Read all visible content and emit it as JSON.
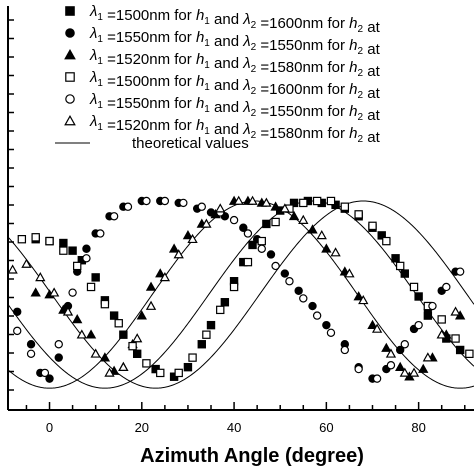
{
  "chart_data": {
    "type": "scatter",
    "xlabel": "Azimuth Angle (degree)",
    "xlim": [
      -9,
      92
    ],
    "ylim": [
      0,
      1
    ],
    "x_ticks": [
      0,
      20,
      40,
      60,
      80
    ],
    "grid": false,
    "legend_position": "top-right",
    "series": [
      {
        "legend_label": "λ1 =1500nm for h1 and λ2 =1600nm for h2 at",
        "marker": "filled-square",
        "points": [
          [
            -3,
            0.8
          ],
          [
            0,
            0.79
          ],
          [
            3,
            0.78
          ],
          [
            5,
            0.74
          ],
          [
            7,
            0.69
          ],
          [
            10,
            0.6
          ],
          [
            12,
            0.48
          ],
          [
            14,
            0.4
          ],
          [
            16,
            0.3
          ],
          [
            19,
            0.2
          ],
          [
            23,
            0.12
          ],
          [
            27,
            0.08
          ],
          [
            30,
            0.13
          ],
          [
            33,
            0.25
          ],
          [
            35,
            0.35
          ],
          [
            38,
            0.47
          ],
          [
            40,
            0.58
          ],
          [
            42,
            0.68
          ],
          [
            44,
            0.77
          ],
          [
            47,
            0.88
          ],
          [
            50,
            0.95
          ],
          [
            53,
            0.99
          ],
          [
            56,
            1.0
          ],
          [
            59,
            0.99
          ],
          [
            62,
            0.98
          ],
          [
            64,
            0.96
          ],
          [
            67,
            0.92
          ],
          [
            70,
            0.86
          ],
          [
            72,
            0.82
          ],
          [
            75,
            0.7
          ],
          [
            77,
            0.62
          ],
          [
            80,
            0.5
          ],
          [
            82,
            0.4
          ],
          [
            86,
            0.28
          ],
          [
            89,
            0.22
          ]
        ]
      },
      {
        "legend_label": "λ1 =1550nm for h1 and λ2 =1550nm for h2 at",
        "marker": "filled-circle",
        "points": [
          [
            -7,
            0.42
          ],
          [
            -4,
            0.25
          ],
          [
            -2,
            0.1
          ],
          [
            0,
            0.07
          ],
          [
            2,
            0.18
          ],
          [
            4,
            0.45
          ],
          [
            6,
            0.63
          ],
          [
            8,
            0.75
          ],
          [
            10,
            0.83
          ],
          [
            13,
            0.92
          ],
          [
            16,
            0.97
          ],
          [
            20,
            1.0
          ],
          [
            24,
            1.0
          ],
          [
            28,
            0.99
          ],
          [
            32,
            0.96
          ],
          [
            35,
            0.94
          ],
          [
            38,
            0.92
          ],
          [
            42,
            0.86
          ],
          [
            45,
            0.8
          ],
          [
            48,
            0.72
          ],
          [
            51,
            0.62
          ],
          [
            54,
            0.53
          ],
          [
            57,
            0.45
          ],
          [
            60,
            0.35
          ],
          [
            64,
            0.25
          ],
          [
            67,
            0.13
          ],
          [
            70,
            0.07
          ],
          [
            73,
            0.12
          ],
          [
            76,
            0.22
          ],
          [
            79,
            0.33
          ],
          [
            82,
            0.43
          ],
          [
            85,
            0.53
          ],
          [
            88,
            0.63
          ]
        ]
      },
      {
        "legend_label": "λ1 =1520nm for h1 and λ2 =1580nm for h2 at",
        "marker": "filled-triangle",
        "points": [
          [
            -3,
            0.52
          ],
          [
            0,
            0.51
          ],
          [
            3,
            0.43
          ],
          [
            6,
            0.38
          ],
          [
            9,
            0.3
          ],
          [
            12,
            0.18
          ],
          [
            14,
            0.11
          ],
          [
            16,
            0.13
          ],
          [
            18,
            0.25
          ],
          [
            20,
            0.4
          ],
          [
            22,
            0.55
          ],
          [
            24,
            0.62
          ],
          [
            27,
            0.75
          ],
          [
            30,
            0.82
          ],
          [
            33,
            0.88
          ],
          [
            36,
            0.93
          ],
          [
            40,
            1.0
          ],
          [
            43,
            1.0
          ],
          [
            46,
            0.99
          ],
          [
            49,
            0.97
          ],
          [
            53,
            0.92
          ],
          [
            57,
            0.85
          ],
          [
            60,
            0.75
          ],
          [
            64,
            0.63
          ],
          [
            67,
            0.5
          ],
          [
            70,
            0.35
          ],
          [
            73,
            0.23
          ],
          [
            76,
            0.13
          ],
          [
            78,
            0.08
          ],
          [
            81,
            0.12
          ],
          [
            83,
            0.18
          ],
          [
            86,
            0.3
          ],
          [
            89,
            0.4
          ]
        ]
      },
      {
        "legend_label": "λ1 =1500nm for h1 and λ2 =1600nm for h2 at",
        "marker": "open-square",
        "points": [
          [
            -6,
            0.8
          ],
          [
            -3,
            0.81
          ],
          [
            0,
            0.79
          ],
          [
            3,
            0.74
          ],
          [
            6,
            0.66
          ],
          [
            9,
            0.55
          ],
          [
            12,
            0.46
          ],
          [
            15,
            0.36
          ],
          [
            18,
            0.24
          ],
          [
            21,
            0.15
          ],
          [
            24,
            0.1
          ],
          [
            28,
            0.1
          ],
          [
            31,
            0.18
          ],
          [
            34,
            0.3
          ],
          [
            37,
            0.43
          ],
          [
            40,
            0.55
          ],
          [
            43,
            0.68
          ],
          [
            46,
            0.79
          ],
          [
            49,
            0.89
          ],
          [
            52,
            0.96
          ],
          [
            55,
            0.99
          ],
          [
            58,
            1.0
          ],
          [
            61,
            1.0
          ],
          [
            64,
            0.97
          ],
          [
            67,
            0.93
          ],
          [
            70,
            0.87
          ],
          [
            73,
            0.79
          ],
          [
            76,
            0.66
          ],
          [
            79,
            0.55
          ],
          [
            82,
            0.45
          ],
          [
            85,
            0.38
          ],
          [
            88,
            0.28
          ],
          [
            91,
            0.2
          ]
        ]
      },
      {
        "legend_label": "λ1 =1550nm for h1 and λ2 =1550nm for h2 at",
        "marker": "open-circle",
        "points": [
          [
            -7,
            0.32
          ],
          [
            -4,
            0.2
          ],
          [
            -1,
            0.1
          ],
          [
            2,
            0.25
          ],
          [
            5,
            0.52
          ],
          [
            8,
            0.7
          ],
          [
            11,
            0.83
          ],
          [
            14,
            0.92
          ],
          [
            17,
            0.97
          ],
          [
            21,
            1.0
          ],
          [
            25,
            1.0
          ],
          [
            29,
            0.99
          ],
          [
            33,
            0.97
          ],
          [
            37,
            0.94
          ],
          [
            40,
            0.9
          ],
          [
            43,
            0.83
          ],
          [
            46,
            0.75
          ],
          [
            49,
            0.66
          ],
          [
            52,
            0.58
          ],
          [
            55,
            0.49
          ],
          [
            58,
            0.4
          ],
          [
            61,
            0.31
          ],
          [
            64,
            0.22
          ],
          [
            67,
            0.12
          ],
          [
            71,
            0.07
          ],
          [
            74,
            0.14
          ],
          [
            77,
            0.25
          ],
          [
            80,
            0.35
          ],
          [
            83,
            0.45
          ],
          [
            86,
            0.55
          ],
          [
            89,
            0.63
          ]
        ]
      },
      {
        "legend_label": "λ1 =1520nm for h1 and λ2 =1580nm for h2 at",
        "marker": "open-triangle",
        "points": [
          [
            -8,
            0.64
          ],
          [
            -5,
            0.67
          ],
          [
            -2,
            0.6
          ],
          [
            1,
            0.52
          ],
          [
            4,
            0.42
          ],
          [
            7,
            0.3
          ],
          [
            10,
            0.2
          ],
          [
            13,
            0.1
          ],
          [
            16,
            0.13
          ],
          [
            19,
            0.28
          ],
          [
            22,
            0.45
          ],
          [
            25,
            0.6
          ],
          [
            28,
            0.72
          ],
          [
            31,
            0.8
          ],
          [
            34,
            0.88
          ],
          [
            37,
            0.96
          ],
          [
            41,
            1.0
          ],
          [
            44,
            1.0
          ],
          [
            47,
            0.99
          ],
          [
            51,
            0.96
          ],
          [
            55,
            0.9
          ],
          [
            59,
            0.82
          ],
          [
            62,
            0.73
          ],
          [
            65,
            0.62
          ],
          [
            68,
            0.48
          ],
          [
            71,
            0.33
          ],
          [
            74,
            0.2
          ],
          [
            77,
            0.1
          ],
          [
            79,
            0.1
          ],
          [
            82,
            0.18
          ],
          [
            85,
            0.3
          ],
          [
            88,
            0.42
          ]
        ]
      }
    ],
    "theoretical_curves": {
      "legend_label": "theoretical values",
      "curves": [
        {
          "amplitude": 1.0,
          "minimum_at": 0,
          "period": 89
        },
        {
          "amplitude": 1.0,
          "minimum_at": 12,
          "period": 90
        },
        {
          "amplitude": 1.0,
          "minimum_at": 23,
          "period": 90
        }
      ],
      "baseline": 0.02
    }
  }
}
